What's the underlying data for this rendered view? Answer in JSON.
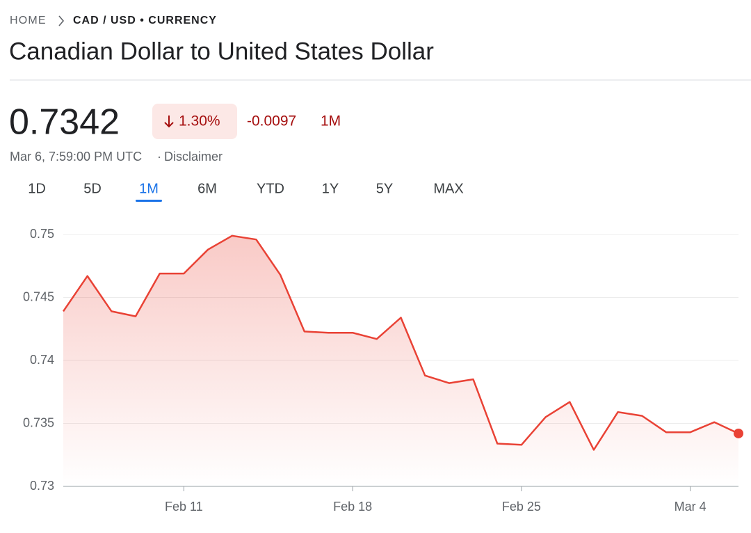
{
  "breadcrumb": {
    "home": "HOME",
    "current": "CAD / USD • CURRENCY"
  },
  "title": "Canadian Dollar to United States Dollar",
  "price": "0.7342",
  "change_percent": "1.30%",
  "change_value": "-0.0097",
  "change_period": "1M",
  "timestamp": "Mar 6, 7:59:00 PM UTC",
  "disclaimer": "Disclaimer",
  "tabs": [
    "1D",
    "5D",
    "1M",
    "6M",
    "YTD",
    "1Y",
    "5Y",
    "MAX"
  ],
  "active_tab": 2,
  "chart_data": {
    "type": "line",
    "categories": [
      null,
      null,
      null,
      null,
      null,
      "Feb 11",
      null,
      null,
      null,
      null,
      null,
      null,
      "Feb 18",
      null,
      null,
      null,
      null,
      null,
      null,
      "Feb 25",
      null,
      null,
      null,
      null,
      null,
      null,
      "Mar 4",
      null,
      null
    ],
    "values": [
      0.7439,
      0.7467,
      0.7439,
      0.7435,
      0.7469,
      0.7469,
      0.7488,
      0.7499,
      0.7496,
      0.7468,
      0.7423,
      0.7422,
      0.7422,
      0.7417,
      0.7434,
      0.7388,
      0.7382,
      0.7385,
      0.7334,
      0.7333,
      0.7355,
      0.7367,
      0.7329,
      0.7359,
      0.7356,
      0.7343,
      0.7343,
      0.7351,
      0.7342
    ],
    "color": "#e94235",
    "ylim": [
      0.73,
      0.75
    ],
    "yticks": [
      0.73,
      0.735,
      0.74,
      0.745,
      0.75
    ],
    "grid": true
  }
}
